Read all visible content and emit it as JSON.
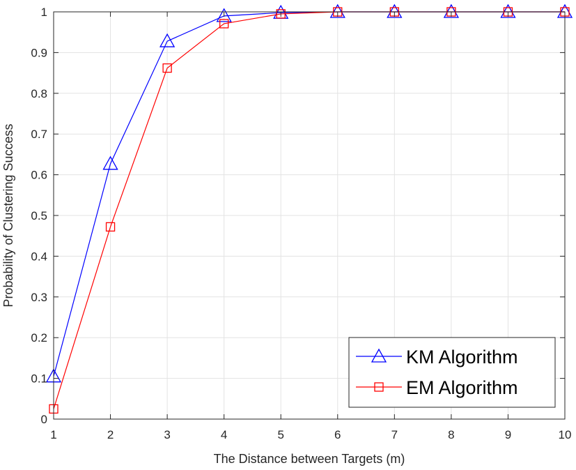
{
  "chart_data": {
    "type": "line",
    "title": "",
    "xlabel": "The Distance between Targets (m)",
    "ylabel": "Probability of Clustering Success",
    "xlim": [
      1,
      10
    ],
    "ylim": [
      0,
      1
    ],
    "x": [
      1,
      2,
      3,
      4,
      5,
      6,
      7,
      8,
      9,
      10
    ],
    "xticks": [
      "1",
      "2",
      "3",
      "4",
      "5",
      "6",
      "7",
      "8",
      "9",
      "10"
    ],
    "yticks": [
      "0",
      "0.1",
      "0.2",
      "0.3",
      "0.4",
      "0.5",
      "0.6",
      "0.7",
      "0.8",
      "0.9",
      "1"
    ],
    "grid": true,
    "legend_position": "bottom-right",
    "series": [
      {
        "name": "KM Algorithm",
        "color": "#0000ff",
        "marker": "triangle",
        "values": [
          0.105,
          0.627,
          0.928,
          0.99,
          0.998,
          1.0,
          1.0,
          1.0,
          1.0,
          1.0
        ]
      },
      {
        "name": "EM Algorithm",
        "color": "#ff0000",
        "marker": "square",
        "values": [
          0.025,
          0.472,
          0.862,
          0.971,
          0.995,
          1.0,
          1.0,
          1.0,
          1.0,
          1.0
        ]
      }
    ]
  }
}
